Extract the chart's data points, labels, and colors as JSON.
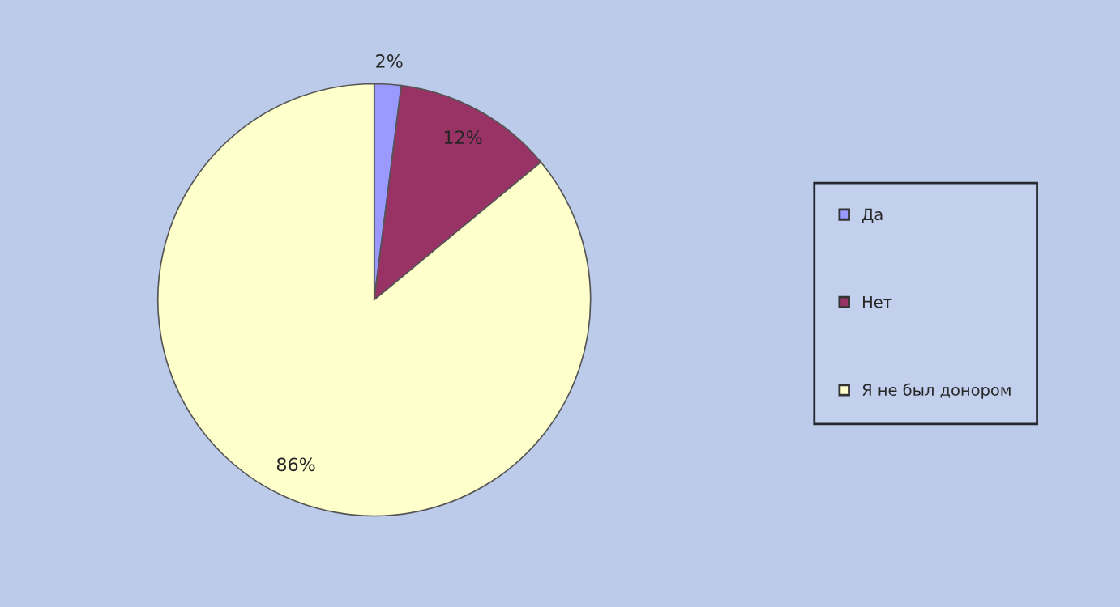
{
  "chart_data": {
    "type": "pie",
    "categories": [
      "Да",
      "Нет",
      "Я не был донором"
    ],
    "values": [
      2,
      12,
      86
    ],
    "colors": [
      "#9999ff",
      "#993366",
      "#ffffcc"
    ],
    "value_labels": [
      "2%",
      "12%",
      "86%"
    ],
    "legend": "right"
  }
}
